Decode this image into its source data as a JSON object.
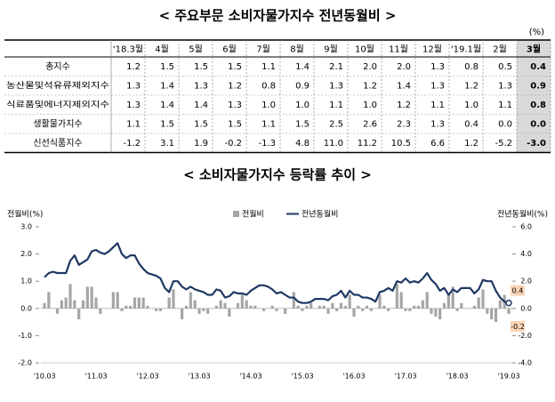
{
  "title": "< 주요부문 소비자물가지수 전년동월비 >",
  "unit": "(%)",
  "table": {
    "header": [
      "'18.3월",
      "4월",
      "5월",
      "6월",
      "7월",
      "8월",
      "9월",
      "10월",
      "11월",
      "12월",
      "'19.1월",
      "2월",
      "3월"
    ],
    "rows": [
      {
        "label": "총지수",
        "cells": [
          "1.2",
          "1.5",
          "1.5",
          "1.5",
          "1.1",
          "1.4",
          "2.1",
          "2.0",
          "2.0",
          "1.3",
          "0.8",
          "0.5",
          "0.4"
        ]
      },
      {
        "label": "농산물및석유류제외지수",
        "cells": [
          "1.3",
          "1.4",
          "1.3",
          "1.2",
          "0.8",
          "0.9",
          "1.3",
          "1.2",
          "1.4",
          "1.3",
          "1.2",
          "1.3",
          "0.9"
        ]
      },
      {
        "label": "식료품및에너지제외지수",
        "cells": [
          "1.3",
          "1.4",
          "1.4",
          "1.3",
          "1.0",
          "1.0",
          "1.1",
          "1.0",
          "1.2",
          "1.1",
          "1.0",
          "1.1",
          "0.8"
        ]
      },
      {
        "label": "생활물가지수",
        "cells": [
          "1.1",
          "1.5",
          "1.5",
          "1.5",
          "1.1",
          "1.5",
          "2.5",
          "2.6",
          "2.3",
          "1.3",
          "0.4",
          "0.0",
          "0.0"
        ]
      },
      {
        "label": "신선식품지수",
        "cells": [
          "-1.2",
          "3.1",
          "1.9",
          "-0.2",
          "-1.3",
          "4.8",
          "11.0",
          "11.2",
          "10.5",
          "6.6",
          "1.2",
          "-5.2",
          "-3.0"
        ]
      }
    ]
  },
  "chart_data": {
    "type": "bar-line",
    "title": "< 소비자물가지수 등락률 추이 >",
    "y_label": "전월비(%)",
    "y2_label": "전년동월비(%)",
    "categories": [
      "'10.03",
      null,
      null,
      null,
      null,
      null,
      null,
      null,
      null,
      null,
      null,
      null,
      "'11.03",
      null,
      null,
      null,
      null,
      null,
      null,
      null,
      null,
      null,
      null,
      null,
      "'12.03",
      null,
      null,
      null,
      null,
      null,
      null,
      null,
      null,
      null,
      null,
      null,
      "'13.03",
      null,
      null,
      null,
      null,
      null,
      null,
      null,
      null,
      null,
      null,
      null,
      "'14.03",
      null,
      null,
      null,
      null,
      null,
      null,
      null,
      null,
      null,
      null,
      null,
      "'15.03",
      null,
      null,
      null,
      null,
      null,
      null,
      null,
      null,
      null,
      null,
      null,
      "'16.03",
      null,
      null,
      null,
      null,
      null,
      null,
      null,
      null,
      null,
      null,
      null,
      "'17.03",
      null,
      null,
      null,
      null,
      null,
      null,
      null,
      null,
      null,
      null,
      null,
      "'18.03",
      null,
      null,
      null,
      null,
      null,
      null,
      null,
      null,
      null,
      null,
      null,
      "'19.03"
    ],
    "ylim": [
      -2,
      3
    ],
    "yticks": [
      {
        "value": 3,
        "label": "3.0"
      },
      {
        "value": 2,
        "label": "2.0"
      },
      {
        "value": 1,
        "label": "1.0"
      },
      {
        "value": 0,
        "label": "0.0"
      },
      {
        "value": -1,
        "label": "-1.0"
      },
      {
        "value": -2,
        "label": "-2.0"
      }
    ],
    "y2lim": [
      -4,
      6
    ],
    "y2ticks": [
      {
        "value": 6,
        "label": "6.0"
      },
      {
        "value": 4,
        "label": "4.0"
      },
      {
        "value": 2,
        "label": "2.0"
      },
      {
        "value": 0,
        "label": "0.0"
      },
      {
        "value": -2,
        "label": "-2.0"
      },
      {
        "value": -4,
        "label": "-4.0"
      }
    ],
    "series": [
      {
        "name": "전월비",
        "type": "bar",
        "color": "#a6a6a6",
        "values": [
          0.2,
          0.6,
          0.0,
          -0.2,
          0.3,
          0.4,
          0.9,
          0.3,
          -0.4,
          0.3,
          0.8,
          0.8,
          0.4,
          -0.2,
          0.0,
          0.0,
          0.6,
          0.6,
          -0.1,
          0.1,
          0.1,
          0.4,
          0.4,
          0.4,
          0.1,
          0.0,
          -0.1,
          -0.1,
          0.0,
          0.4,
          0.7,
          0.0,
          -0.4,
          0.1,
          0.6,
          0.3,
          -0.2,
          -0.1,
          -0.2,
          0.0,
          0.1,
          0.3,
          0.2,
          -0.3,
          0.0,
          0.2,
          0.5,
          0.3,
          0.1,
          0.1,
          0.0,
          -0.1,
          0.0,
          0.1,
          -0.1,
          0.0,
          -0.2,
          0.0,
          0.6,
          0.1,
          -0.1,
          0.1,
          0.2,
          0.0,
          0.1,
          0.1,
          -0.2,
          0.2,
          -0.1,
          0.2,
          0.1,
          0.5,
          -0.3,
          0.1,
          -0.1,
          0.1,
          -0.1,
          0.0,
          0.5,
          0.1,
          -0.1,
          0.0,
          0.9,
          0.6,
          -0.1,
          -0.1,
          0.1,
          0.1,
          0.3,
          0.6,
          -0.2,
          -0.3,
          -0.4,
          0.2,
          0.5,
          0.8,
          -0.1,
          0.2,
          0.0,
          0.0,
          0.1,
          0.4,
          0.7,
          -0.2,
          -0.4,
          -0.5,
          0.3,
          0.5,
          -0.2
        ]
      },
      {
        "name": "전년동월비",
        "type": "line",
        "axis": "y2",
        "color": "#1f3864",
        "values": [
          2.3,
          2.6,
          2.7,
          2.6,
          2.6,
          2.6,
          3.5,
          3.9,
          3.2,
          3.4,
          3.6,
          4.2,
          4.3,
          4.1,
          4.0,
          4.2,
          4.5,
          4.8,
          4.0,
          3.7,
          3.9,
          3.9,
          3.3,
          2.9,
          2.6,
          2.5,
          2.4,
          2.2,
          1.5,
          1.2,
          2.0,
          2.0,
          1.6,
          1.4,
          1.6,
          1.4,
          1.3,
          1.2,
          1.0,
          1.0,
          1.4,
          1.3,
          0.8,
          0.9,
          1.2,
          1.1,
          1.1,
          1.0,
          1.3,
          1.5,
          1.7,
          1.7,
          1.6,
          1.4,
          1.1,
          1.2,
          1.0,
          0.8,
          0.8,
          0.5,
          0.4,
          0.4,
          0.5,
          0.7,
          0.7,
          0.7,
          0.6,
          0.9,
          1.0,
          1.3,
          0.8,
          1.3,
          1.0,
          1.0,
          0.8,
          0.8,
          0.7,
          0.5,
          1.2,
          1.3,
          1.5,
          1.3,
          2.0,
          1.9,
          2.2,
          1.9,
          2.0,
          1.9,
          2.2,
          2.6,
          2.1,
          1.8,
          1.3,
          1.5,
          1.0,
          1.4,
          1.2,
          1.5,
          1.5,
          1.5,
          1.1,
          1.4,
          2.1,
          2.0,
          2.0,
          1.3,
          0.8,
          0.5,
          0.4
        ]
      }
    ]
  }
}
